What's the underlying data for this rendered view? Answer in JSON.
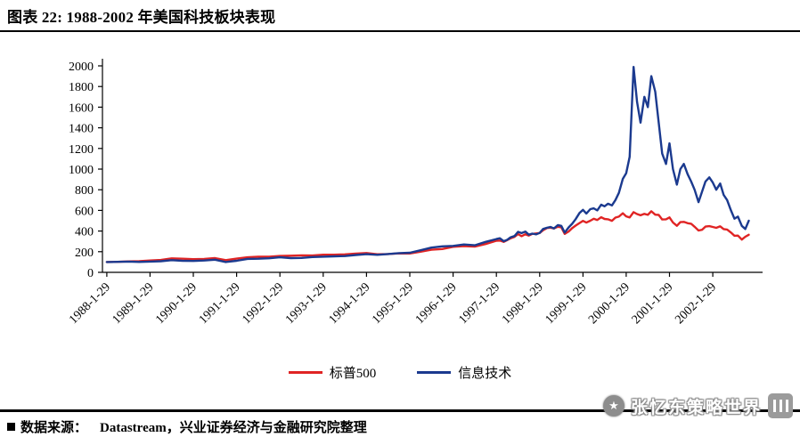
{
  "header": {
    "title": "图表 22:  1988-2002 年美国科技板块表现"
  },
  "footer": {
    "label": "数据来源：",
    "source": "Datastream，兴业证券经济与金融研究院整理"
  },
  "watermark": {
    "text": "张忆东策略世界",
    "badge_icon": "star-badge-icon",
    "logo_icon": "gelonghui-logo-icon"
  },
  "chart_data": {
    "type": "line",
    "title": "",
    "xlabel": "",
    "ylabel": "",
    "grid": false,
    "legend_position": "bottom",
    "xlim": [
      1987.9,
      2003.15
    ],
    "ylim": [
      0,
      2000
    ],
    "y_ticks": [
      0,
      200,
      400,
      600,
      800,
      1000,
      1200,
      1400,
      1600,
      1800,
      2000
    ],
    "x_ticks": [
      {
        "value": 1988,
        "label": "1988-1-29"
      },
      {
        "value": 1989,
        "label": "1989-1-29"
      },
      {
        "value": 1990,
        "label": "1990-1-29"
      },
      {
        "value": 1991,
        "label": "1991-1-29"
      },
      {
        "value": 1992,
        "label": "1992-1-29"
      },
      {
        "value": 1993,
        "label": "1993-1-29"
      },
      {
        "value": 1994,
        "label": "1994-1-29"
      },
      {
        "value": 1995,
        "label": "1995-1-29"
      },
      {
        "value": 1996,
        "label": "1996-1-29"
      },
      {
        "value": 1997,
        "label": "1997-1-29"
      },
      {
        "value": 1998,
        "label": "1998-1-29"
      },
      {
        "value": 1999,
        "label": "1999-1-29"
      },
      {
        "value": 2000,
        "label": "2000-1-29"
      },
      {
        "value": 2001,
        "label": "2001-1-29"
      },
      {
        "value": 2002,
        "label": "2002-1-29"
      }
    ],
    "x": [
      1988.0,
      1988.25,
      1988.5,
      1988.75,
      1989.0,
      1989.25,
      1989.5,
      1989.75,
      1990.0,
      1990.25,
      1990.5,
      1990.75,
      1991.0,
      1991.25,
      1991.5,
      1991.75,
      1992.0,
      1992.25,
      1992.5,
      1992.75,
      1993.0,
      1993.25,
      1993.5,
      1993.75,
      1994.0,
      1994.25,
      1994.5,
      1994.75,
      1995.0,
      1995.25,
      1995.5,
      1995.75,
      1996.0,
      1996.25,
      1996.5,
      1996.75,
      1997.0,
      1997.08,
      1997.17,
      1997.25,
      1997.33,
      1997.42,
      1997.5,
      1997.58,
      1997.67,
      1997.75,
      1997.83,
      1997.92,
      1998.0,
      1998.08,
      1998.17,
      1998.25,
      1998.33,
      1998.42,
      1998.5,
      1998.58,
      1998.67,
      1998.75,
      1998.83,
      1998.92,
      1999.0,
      1999.08,
      1999.17,
      1999.25,
      1999.33,
      1999.42,
      1999.5,
      1999.58,
      1999.67,
      1999.75,
      1999.83,
      1999.92,
      2000.0,
      2000.08,
      2000.17,
      2000.25,
      2000.33,
      2000.42,
      2000.5,
      2000.58,
      2000.67,
      2000.75,
      2000.83,
      2000.92,
      2001.0,
      2001.08,
      2001.17,
      2001.25,
      2001.33,
      2001.42,
      2001.5,
      2001.58,
      2001.67,
      2001.75,
      2001.83,
      2001.92,
      2002.0,
      2002.08,
      2002.17,
      2002.25,
      2002.33,
      2002.42,
      2002.5,
      2002.58,
      2002.67,
      2002.75,
      2002.83
    ],
    "series": [
      {
        "id": "sp500",
        "name": "标普500",
        "color": "#e02424",
        "values": [
          100,
          102,
          106,
          108,
          115,
          120,
          135,
          132,
          128,
          129,
          138,
          118,
          133,
          146,
          151,
          152,
          159,
          161,
          165,
          163,
          171,
          171,
          174,
          182,
          187,
          175,
          178,
          184,
          183,
          200,
          219,
          226,
          247,
          254,
          249,
          274,
          306,
          308,
          295,
          312,
          330,
          344,
          371,
          350,
          369,
          356,
          372,
          377,
          381,
          408,
          429,
          433,
          425,
          441,
          436,
          372,
          396,
          428,
          453,
          478,
          498,
          482,
          500,
          519,
          507,
          534,
          517,
          514,
          499,
          530,
          540,
          572,
          542,
          532,
          583,
          565,
          553,
          566,
          557,
          591,
          559,
          556,
          512,
          514,
          532,
          483,
          451,
          486,
          489,
          476,
          471,
          441,
          405,
          412,
          443,
          447,
          440,
          431,
          446,
          419,
          415,
          385,
          354,
          356,
          317,
          345,
          364
        ]
      },
      {
        "id": "it",
        "name": "信息技术",
        "color": "#1b3a8f",
        "values": [
          100,
          102,
          104,
          101,
          104,
          108,
          118,
          112,
          110,
          115,
          122,
          100,
          112,
          130,
          132,
          136,
          146,
          138,
          140,
          148,
          152,
          155,
          158,
          168,
          176,
          170,
          178,
          186,
          190,
          214,
          240,
          252,
          256,
          270,
          262,
          295,
          322,
          330,
          302,
          315,
          340,
          352,
          392,
          380,
          395,
          365,
          375,
          368,
          382,
          420,
          432,
          440,
          425,
          458,
          450,
          385,
          435,
          470,
          515,
          575,
          605,
          570,
          612,
          620,
          600,
          655,
          640,
          665,
          648,
          700,
          770,
          905,
          960,
          1120,
          1990,
          1650,
          1450,
          1700,
          1600,
          1900,
          1750,
          1450,
          1150,
          1050,
          1250,
          1000,
          850,
          1000,
          1050,
          950,
          880,
          800,
          680,
          780,
          880,
          920,
          870,
          800,
          860,
          750,
          700,
          600,
          520,
          540,
          450,
          420,
          500
        ]
      }
    ]
  }
}
